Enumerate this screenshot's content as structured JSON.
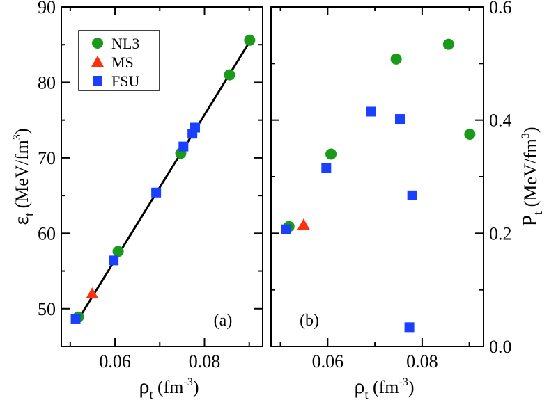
{
  "chart_data": [
    {
      "panel": "a",
      "type": "scatter",
      "panel_label": "(a)",
      "xlabel_sym": "ρ",
      "xlabel_sub": "t",
      "xlabel_unit": " (fm",
      "xlabel_exp": "-3",
      "xlabel_close": ")",
      "ylabel_sym": "ε",
      "ylabel_sub": "t",
      "ylabel_unit": " (MeV/fm",
      "ylabel_exp": "3",
      "ylabel_close": ")",
      "xlim": [
        0.048,
        0.093
      ],
      "ylim": [
        45,
        90
      ],
      "xticks": [
        0.06,
        0.08
      ],
      "xtick_labels": [
        "0.06",
        "0.08"
      ],
      "yticks": [
        50,
        60,
        70,
        80,
        90
      ],
      "ytick_labels": [
        "50",
        "60",
        "70",
        "80",
        "90"
      ],
      "legend_position": "top-left",
      "series": [
        {
          "name": "NL3",
          "marker": "circle",
          "color": "#1a9a1a",
          "x": [
            0.0518,
            0.0607,
            0.0747,
            0.0856,
            0.0901
          ],
          "y": [
            48.9,
            57.6,
            70.6,
            81.0,
            85.6
          ]
        },
        {
          "name": "MS",
          "marker": "triangle",
          "color": "#ff3010",
          "x": [
            0.0549
          ],
          "y": [
            52.0
          ]
        },
        {
          "name": "FSU",
          "marker": "square",
          "color": "#1a3fff",
          "x": [
            0.0512,
            0.0597,
            0.0692,
            0.0753,
            0.0773,
            0.0779
          ],
          "y": [
            48.6,
            56.4,
            65.4,
            71.5,
            73.2,
            74.0
          ]
        }
      ],
      "fit_line": {
        "x": [
          0.0515,
          0.0905
        ],
        "y": [
          48.3,
          85.8
        ]
      }
    },
    {
      "panel": "b",
      "type": "scatter",
      "panel_label": "(b)",
      "xlabel_sym": "ρ",
      "xlabel_sub": "t",
      "xlabel_unit": " (fm",
      "xlabel_exp": "-3",
      "xlabel_close": ")",
      "ylabel_sym": "P",
      "ylabel_sub": "t",
      "ylabel_unit": " (MeV/fm",
      "ylabel_exp": "3",
      "ylabel_close": ")",
      "xlim": [
        0.048,
        0.093
      ],
      "ylim": [
        0.0,
        0.6
      ],
      "xticks": [
        0.06,
        0.08
      ],
      "xtick_labels": [
        "0.06",
        "0.08"
      ],
      "yticks": [
        0.0,
        0.2,
        0.4,
        0.6
      ],
      "ytick_labels": [
        "0.0",
        "0.2",
        "0.4",
        "0.6"
      ],
      "yminor": [
        0.1,
        0.3,
        0.5
      ],
      "series": [
        {
          "name": "NL3",
          "marker": "circle",
          "color": "#1a9a1a",
          "x": [
            0.0518,
            0.0607,
            0.0745,
            0.0856,
            0.0901
          ],
          "y": [
            0.212,
            0.34,
            0.508,
            0.534,
            0.375
          ]
        },
        {
          "name": "MS",
          "marker": "triangle",
          "color": "#ff3010",
          "x": [
            0.0549
          ],
          "y": [
            0.215
          ]
        },
        {
          "name": "FSU",
          "marker": "square",
          "color": "#1a3fff",
          "x": [
            0.0512,
            0.0597,
            0.0692,
            0.0753,
            0.0773,
            0.0779
          ],
          "y": [
            0.207,
            0.316,
            0.415,
            0.402,
            0.034,
            0.267
          ]
        }
      ]
    }
  ]
}
